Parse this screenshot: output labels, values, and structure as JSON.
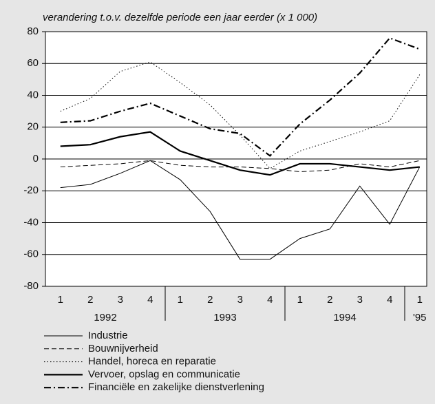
{
  "chart_data": {
    "type": "line",
    "title": "verandering t.o.v. dezelfde periode een jaar eerder (x 1 000)",
    "categories": [
      "1",
      "2",
      "3",
      "4",
      "1",
      "2",
      "3",
      "4",
      "1",
      "2",
      "3",
      "4",
      "1"
    ],
    "x_groups": [
      "1992",
      "1993",
      "1994",
      "'95"
    ],
    "ylim": [
      -80,
      80
    ],
    "yticks": [
      -80,
      -60,
      -40,
      -20,
      0,
      20,
      40,
      60,
      80
    ],
    "grid": true,
    "series": [
      {
        "name": "Industrie",
        "color": "#000000",
        "dash": "solid",
        "width": 1,
        "values": [
          -18,
          -16,
          -9,
          -1,
          -13,
          -33,
          -63,
          -63,
          -50,
          -44,
          -17,
          -41,
          -5
        ]
      },
      {
        "name": "Bouwnijverheid",
        "color": "#000000",
        "dash": "dashed",
        "width": 1,
        "values": [
          -5,
          -4,
          -3,
          -1,
          -4,
          -5,
          -5,
          -6,
          -8,
          -7,
          -3,
          -5,
          -1
        ]
      },
      {
        "name": "Handel, horeca en reparatie",
        "color": "#000000",
        "dash": "dotted",
        "width": 1,
        "values": [
          30,
          38,
          55,
          61,
          48,
          34,
          15,
          -6,
          5,
          11,
          17,
          24,
          53
        ]
      },
      {
        "name": "Vervoer, opslag en communicatie",
        "color": "#000000",
        "dash": "solid",
        "width": 2.2,
        "values": [
          8,
          9,
          14,
          17,
          5,
          -1,
          -7,
          -10,
          -3,
          -3,
          -5,
          -7,
          -5
        ]
      },
      {
        "name": "Financiële en zakelijke dienstverlening",
        "color": "#000000",
        "dash": "dashdot",
        "width": 2.2,
        "values": [
          23,
          24,
          30,
          35,
          27,
          19,
          16,
          2,
          22,
          37,
          54,
          76,
          69
        ]
      }
    ]
  }
}
